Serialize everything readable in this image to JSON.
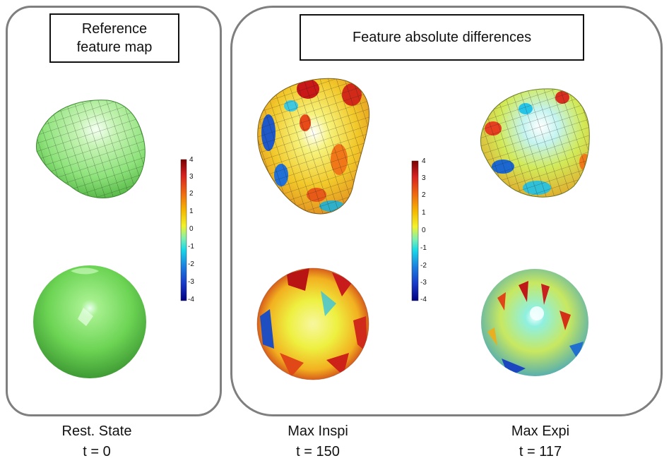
{
  "titles": {
    "reference_line1": "Reference",
    "reference_line2": "feature map",
    "differences": "Feature absolute differences"
  },
  "colorbar": {
    "ticks": [
      "4",
      "3",
      "2",
      "1",
      "0",
      "-1",
      "-2",
      "-3",
      "-4"
    ],
    "colors": [
      "#7a0000",
      "#d62020",
      "#f06a10",
      "#f5b800",
      "#f2f22a",
      "#7ef0b0",
      "#18d8e8",
      "#1a7ee0",
      "#1838c8",
      "#000080"
    ]
  },
  "columns": [
    {
      "name": "Rest. State",
      "time": "t = 0",
      "surface_color": "#7ee06a"
    },
    {
      "name": "Max Inspi",
      "time": "t = 150",
      "surface_color": "#f2e84a"
    },
    {
      "name": "Max Expi",
      "time": "t = 117",
      "surface_color": "#b8e470"
    }
  ]
}
